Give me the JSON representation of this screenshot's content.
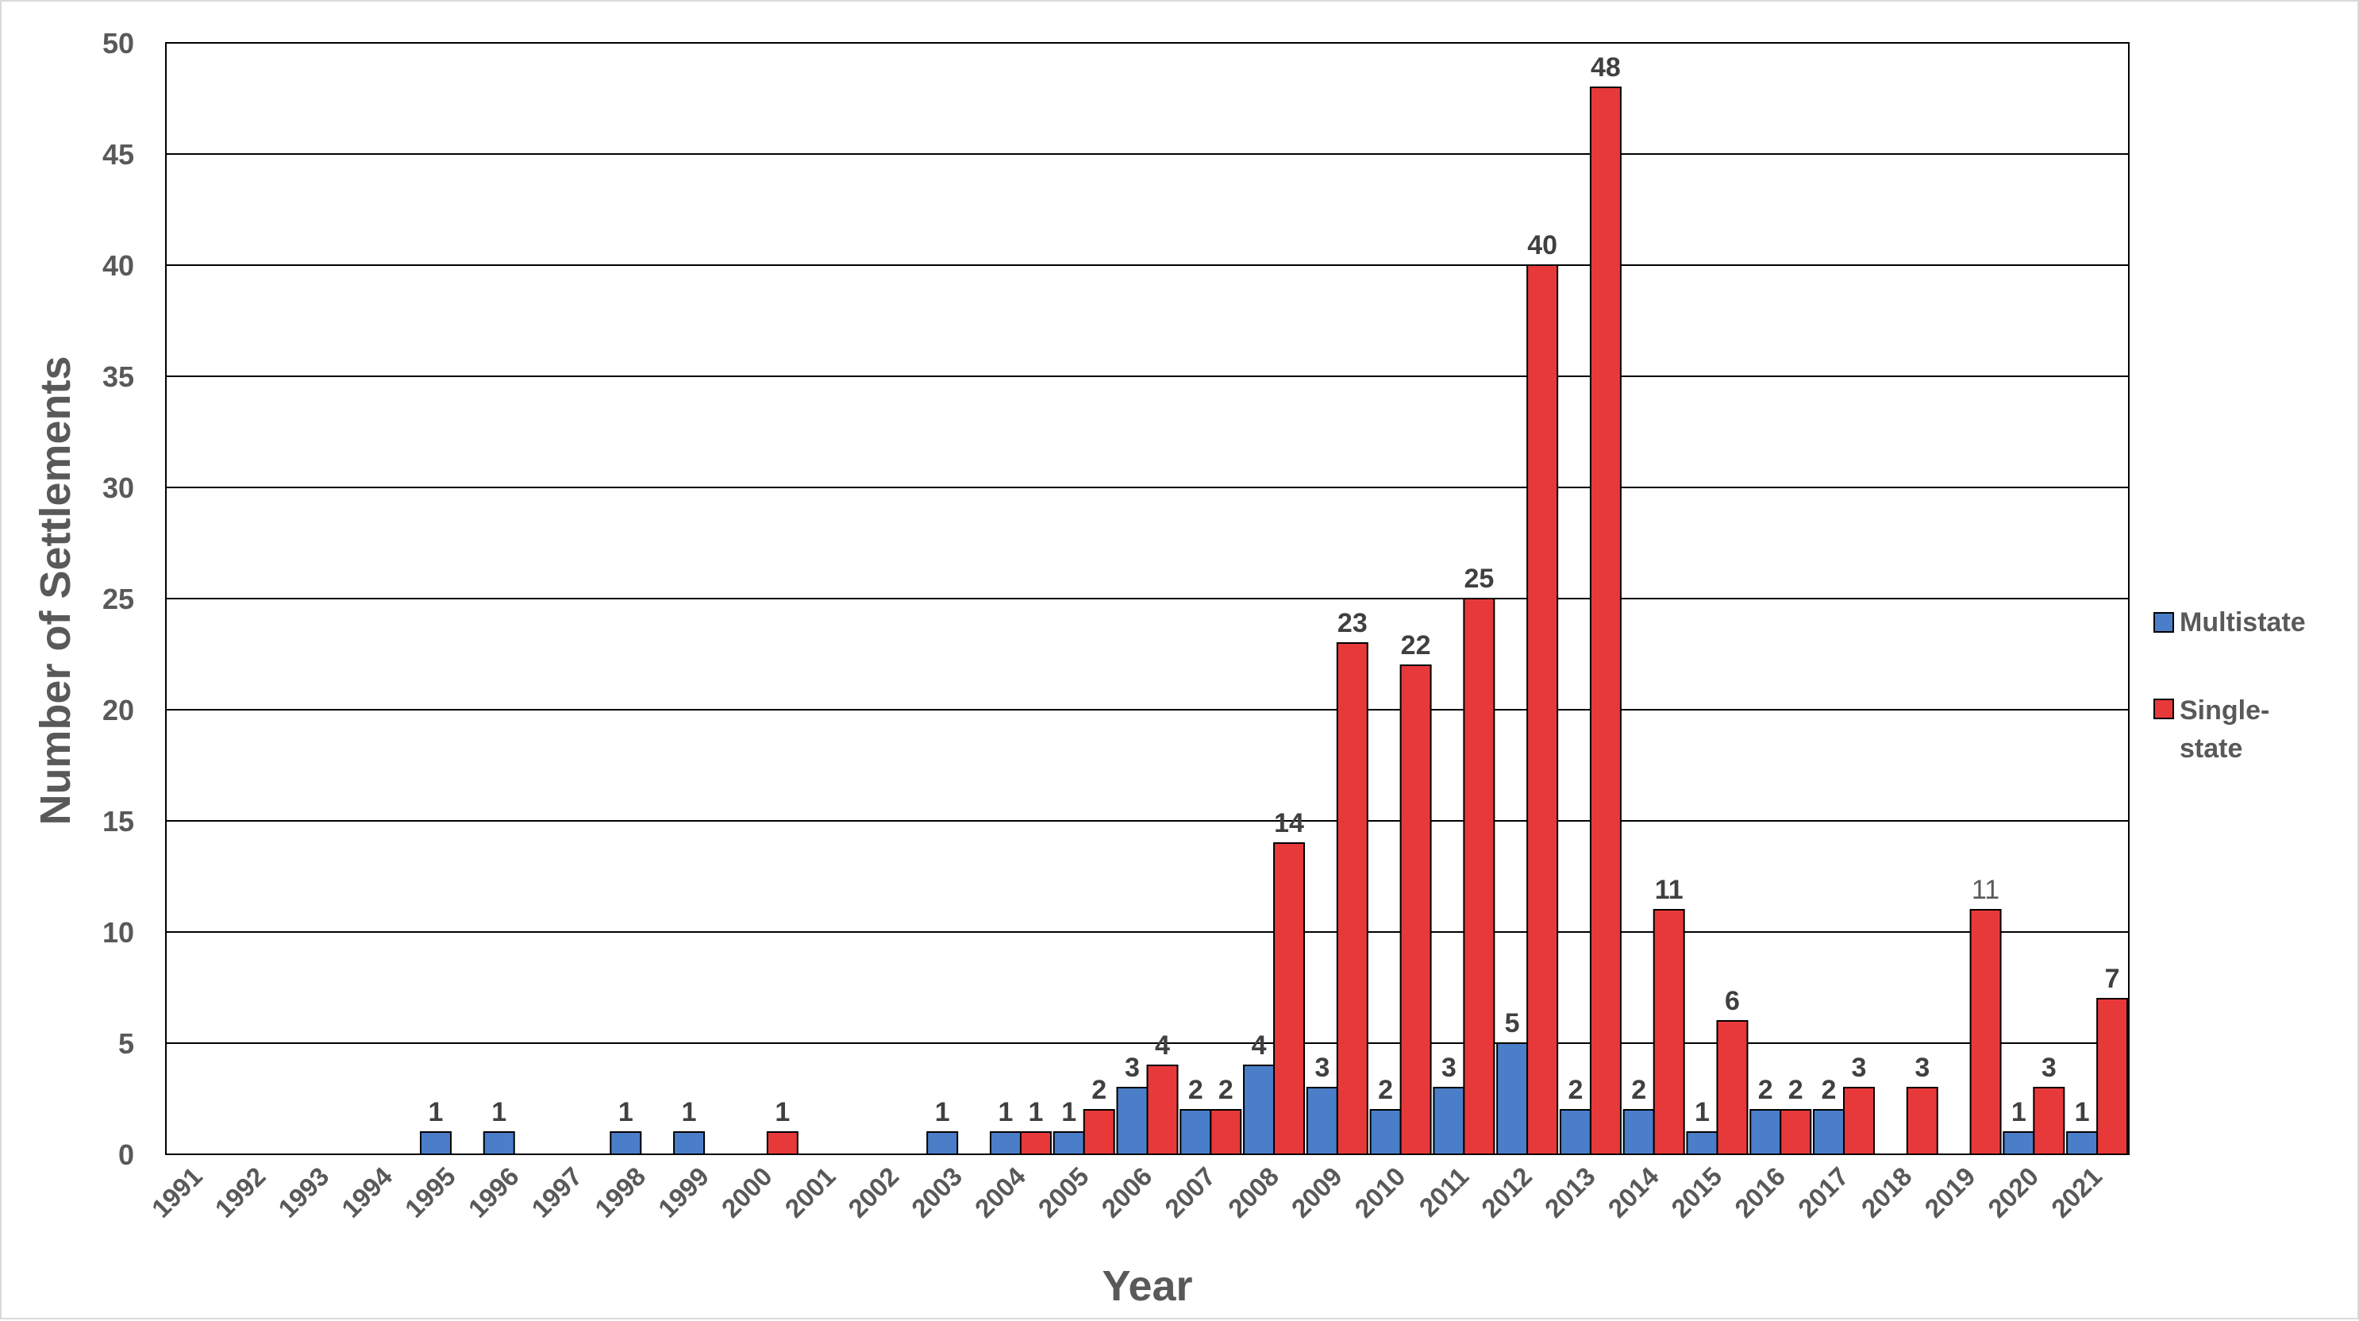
{
  "chart_data": {
    "type": "bar",
    "xlabel": "Year",
    "ylabel": "Number of Settlements",
    "ylim": [
      0,
      50
    ],
    "yticks": [
      0,
      5,
      10,
      15,
      20,
      25,
      30,
      35,
      40,
      45,
      50
    ],
    "grid": true,
    "legend_position": "right",
    "categories": [
      "1991",
      "1992",
      "1993",
      "1994",
      "1995",
      "1996",
      "1997",
      "1998",
      "1999",
      "2000",
      "2001",
      "2002",
      "2003",
      "2004",
      "2005",
      "2006",
      "2007",
      "2008",
      "2009",
      "2010",
      "2011",
      "2012",
      "2013",
      "2014",
      "2015",
      "2016",
      "2017",
      "2018",
      "2019",
      "2020",
      "2021"
    ],
    "series": [
      {
        "name": "Multistate",
        "color": "#4a7ec9",
        "values": [
          0,
          0,
          0,
          0,
          1,
          1,
          0,
          1,
          1,
          0,
          0,
          0,
          1,
          1,
          1,
          3,
          2,
          4,
          3,
          2,
          3,
          5,
          2,
          2,
          1,
          2,
          2,
          0,
          0,
          1,
          1
        ]
      },
      {
        "name": "Single-state",
        "name_lines": [
          "Single-",
          "state"
        ],
        "color": "#e8393a",
        "values": [
          0,
          0,
          0,
          0,
          0,
          0,
          0,
          0,
          0,
          1,
          0,
          0,
          0,
          1,
          2,
          4,
          2,
          14,
          23,
          22,
          25,
          40,
          48,
          11,
          6,
          2,
          3,
          3,
          11,
          3,
          7
        ]
      }
    ]
  }
}
